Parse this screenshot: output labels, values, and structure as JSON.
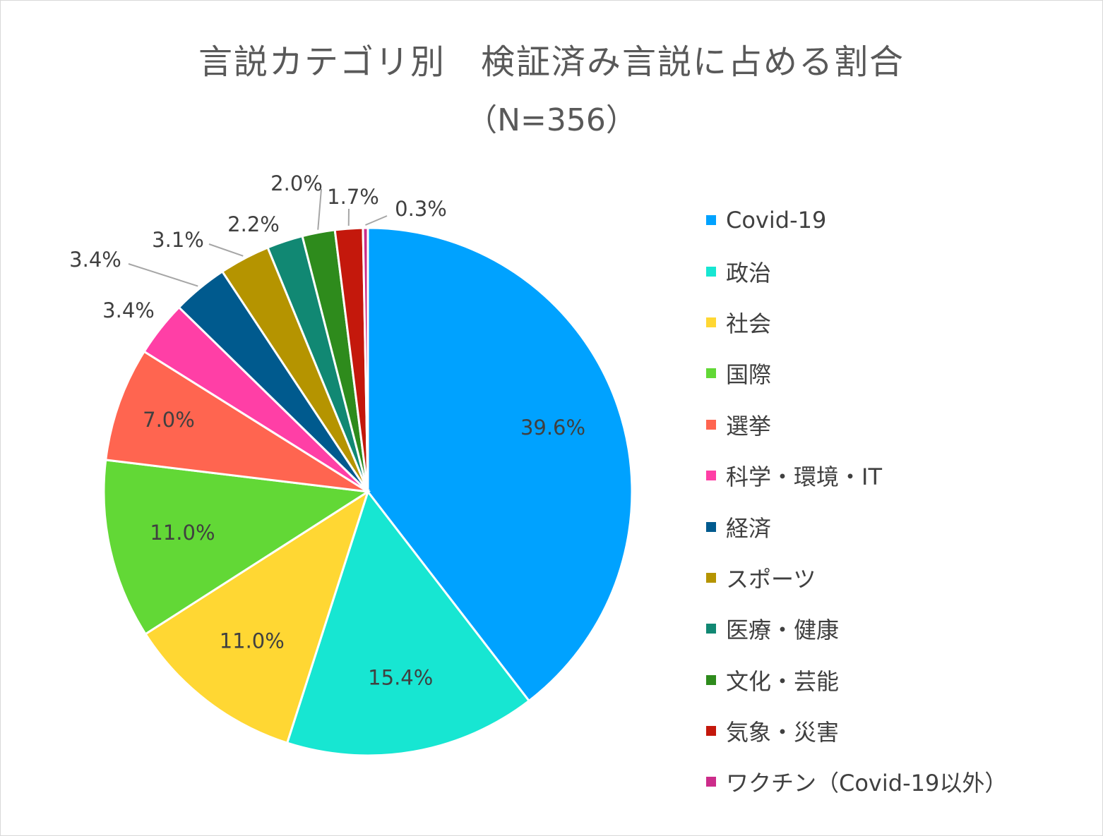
{
  "chart_data": {
    "type": "pie",
    "title": "言説カテゴリ別　検証済み言説に占める割合",
    "subtitle": "（N=356）",
    "legend_position": "right",
    "categories": [
      "Covid-19",
      "政治",
      "社会",
      "国際",
      "選挙",
      "科学・環境・IT",
      "経済",
      "スポーツ",
      "医療・健康",
      "文化・芸能",
      "気象・災害",
      "ワクチン（Covid-19以外）"
    ],
    "values": [
      39.6,
      15.4,
      11.0,
      11.0,
      7.0,
      3.4,
      3.4,
      3.1,
      2.2,
      2.0,
      1.7,
      0.3
    ],
    "labels": [
      "39.6%",
      "15.4%",
      "11.0%",
      "11.0%",
      "7.0%",
      "3.4%",
      "3.4%",
      "3.1%",
      "2.2%",
      "2.0%",
      "1.7%",
      "0.3%"
    ],
    "colors": [
      "#00a2ff",
      "#17e6d2",
      "#ffd733",
      "#62d836",
      "#ff6550",
      "#ff3fa6",
      "#005a8e",
      "#b59400",
      "#118873",
      "#2e8b1c",
      "#c4180c",
      "#cc2c8a"
    ]
  }
}
